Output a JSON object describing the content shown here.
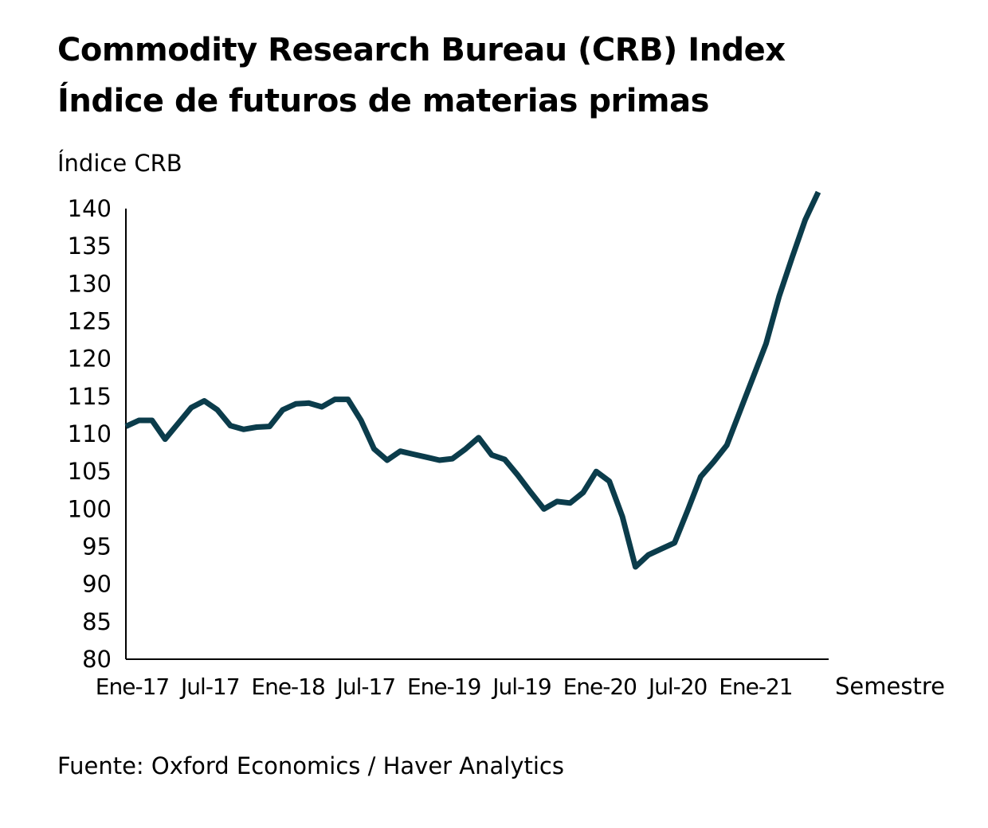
{
  "title_line_1": "Commodity Research Bureau (CRB) Index",
  "title_line_2": "Índice de futuros de materias primas",
  "source": "Fuente: Oxford Economics / Haver Analytics",
  "colors": {
    "line": "#0b3c4b",
    "axis": "#000000",
    "text": "#000000",
    "background": "#ffffff"
  },
  "chart_data": {
    "type": "line",
    "title": "Commodity Research Bureau (CRB) Index",
    "subtitle": "Índice de futuros de materias primas",
    "ylabel": "Índice CRB",
    "xlabel": "Semestre",
    "ylim": [
      80,
      140
    ],
    "yticks": [
      80,
      85,
      90,
      95,
      100,
      105,
      110,
      115,
      120,
      125,
      130,
      135,
      140
    ],
    "xticks": [
      "Ene-17",
      "Jul-17",
      "Ene-18",
      "Jul-17",
      "Ene-19",
      "Jul-19",
      "Ene-20",
      "Jul-20",
      "Ene-21"
    ],
    "grid": false,
    "legend": "none",
    "series": [
      {
        "values": [
          111,
          111.8,
          111.8,
          109.3,
          111.4,
          113.5,
          114.4,
          113.2,
          111.1,
          110.6,
          110.9,
          111,
          113.2,
          114,
          114.1,
          113.6,
          114.6,
          114.6,
          111.8,
          108,
          106.5,
          107.7,
          107.3,
          106.9,
          106.5,
          106.7,
          108,
          109.5,
          107.2,
          106.6,
          104.5,
          102.2,
          100,
          101,
          100.8,
          102.2,
          105,
          103.7,
          99,
          92.3,
          93.9,
          94.7,
          95.5,
          99.8,
          104.3,
          106.3,
          108.5,
          113,
          117.5,
          122,
          128.3,
          133.5,
          138.5,
          142.2
        ]
      }
    ]
  }
}
